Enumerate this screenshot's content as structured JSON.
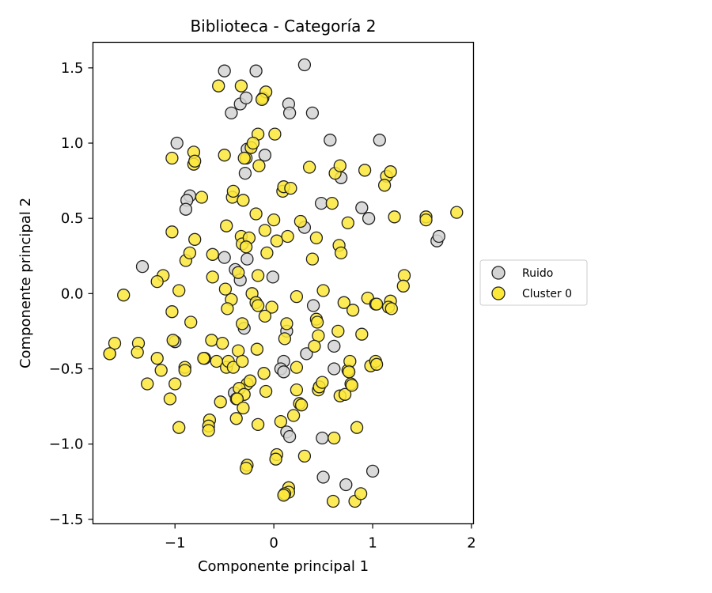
{
  "chart_data": {
    "type": "scatter",
    "title": "Biblioteca - Categoría 2",
    "xlabel": "Componente principal 1",
    "ylabel": "Componente principal 2",
    "xlim": [
      -1.83,
      2.02
    ],
    "ylim": [
      -1.53,
      1.67
    ],
    "xticks": [
      -1,
      0,
      1,
      2
    ],
    "xtick_labels": [
      "−1",
      "0",
      "1",
      "2"
    ],
    "yticks": [
      -1.5,
      -1.0,
      -0.5,
      0.0,
      0.5,
      1.0,
      1.5
    ],
    "ytick_labels": [
      "−1.5",
      "−1.0",
      "−0.5",
      "0.0",
      "0.5",
      "1.0",
      "1.5"
    ],
    "grid": false,
    "legend_placement": "outside-right",
    "series": [
      {
        "name": "Ruido",
        "color": "#d3d3d3",
        "edge_color": "#222222",
        "points": [
          [
            -0.5,
            1.48
          ],
          [
            -0.18,
            1.48
          ],
          [
            0.31,
            1.52
          ],
          [
            -0.34,
            1.26
          ],
          [
            -0.43,
            1.2
          ],
          [
            0.15,
            1.26
          ],
          [
            0.16,
            1.2
          ],
          [
            0.39,
            1.2
          ],
          [
            -0.28,
            1.3
          ],
          [
            0.57,
            1.02
          ],
          [
            1.07,
            1.02
          ],
          [
            -0.98,
            1.0
          ],
          [
            -0.27,
            0.96
          ],
          [
            -0.09,
            0.92
          ],
          [
            -0.29,
            0.8
          ],
          [
            0.68,
            0.77
          ],
          [
            -0.85,
            0.65
          ],
          [
            -0.88,
            0.62
          ],
          [
            -0.89,
            0.56
          ],
          [
            0.48,
            0.6
          ],
          [
            0.89,
            0.57
          ],
          [
            0.96,
            0.5
          ],
          [
            1.65,
            0.35
          ],
          [
            1.67,
            0.38
          ],
          [
            0.31,
            0.44
          ],
          [
            -1.33,
            0.18
          ],
          [
            -0.5,
            0.24
          ],
          [
            -0.27,
            0.23
          ],
          [
            -0.39,
            0.16
          ],
          [
            -0.34,
            0.09
          ],
          [
            -0.01,
            0.11
          ],
          [
            0.4,
            -0.08
          ],
          [
            -0.3,
            -0.23
          ],
          [
            0.13,
            -0.25
          ],
          [
            -1.0,
            -0.32
          ],
          [
            0.61,
            -0.35
          ],
          [
            0.33,
            -0.4
          ],
          [
            0.1,
            -0.45
          ],
          [
            0.07,
            -0.5
          ],
          [
            0.1,
            -0.52
          ],
          [
            0.61,
            -0.5
          ],
          [
            -0.4,
            -0.66
          ],
          [
            0.13,
            -0.92
          ],
          [
            0.16,
            -0.95
          ],
          [
            0.49,
            -0.96
          ],
          [
            0.5,
            -1.22
          ],
          [
            0.73,
            -1.27
          ],
          [
            1.0,
            -1.18
          ]
        ]
      },
      {
        "name": "Cluster 0",
        "color": "#fce839",
        "edge_color": "#222222",
        "points": [
          [
            -0.56,
            1.38
          ],
          [
            -0.33,
            1.38
          ],
          [
            -0.11,
            1.3
          ],
          [
            -0.08,
            1.34
          ],
          [
            -0.12,
            1.29
          ],
          [
            -0.16,
            1.06
          ],
          [
            0.01,
            1.06
          ],
          [
            -0.23,
            0.97
          ],
          [
            -0.21,
            1.0
          ],
          [
            -0.28,
            0.9
          ],
          [
            -0.3,
            0.9
          ],
          [
            -0.5,
            0.92
          ],
          [
            -1.03,
            0.9
          ],
          [
            -0.81,
            0.94
          ],
          [
            -0.81,
            0.86
          ],
          [
            -0.8,
            0.88
          ],
          [
            -0.15,
            0.85
          ],
          [
            0.36,
            0.84
          ],
          [
            0.62,
            0.8
          ],
          [
            0.67,
            0.85
          ],
          [
            0.92,
            0.82
          ],
          [
            1.14,
            0.78
          ],
          [
            1.18,
            0.81
          ],
          [
            1.12,
            0.72
          ],
          [
            0.09,
            0.68
          ],
          [
            0.1,
            0.71
          ],
          [
            0.17,
            0.7
          ],
          [
            -0.73,
            0.64
          ],
          [
            -0.42,
            0.64
          ],
          [
            -0.41,
            0.68
          ],
          [
            -0.31,
            0.62
          ],
          [
            0.59,
            0.6
          ],
          [
            -0.18,
            0.53
          ],
          [
            0.0,
            0.49
          ],
          [
            0.27,
            0.48
          ],
          [
            0.75,
            0.47
          ],
          [
            1.22,
            0.51
          ],
          [
            1.54,
            0.51
          ],
          [
            1.54,
            0.49
          ],
          [
            1.85,
            0.54
          ],
          [
            -1.03,
            0.41
          ],
          [
            -0.48,
            0.45
          ],
          [
            -0.33,
            0.38
          ],
          [
            -0.32,
            0.33
          ],
          [
            -0.25,
            0.37
          ],
          [
            -0.09,
            0.42
          ],
          [
            0.03,
            0.35
          ],
          [
            0.14,
            0.38
          ],
          [
            0.43,
            0.37
          ],
          [
            0.66,
            0.32
          ],
          [
            -0.8,
            0.36
          ],
          [
            -0.89,
            0.22
          ],
          [
            -0.85,
            0.27
          ],
          [
            -0.62,
            0.26
          ],
          [
            -0.28,
            0.31
          ],
          [
            -0.07,
            0.27
          ],
          [
            0.68,
            0.27
          ],
          [
            0.39,
            0.23
          ],
          [
            -1.12,
            0.12
          ],
          [
            -1.18,
            0.08
          ],
          [
            -0.62,
            0.11
          ],
          [
            -0.36,
            0.14
          ],
          [
            -0.16,
            0.12
          ],
          [
            1.32,
            0.12
          ],
          [
            -1.52,
            -0.01
          ],
          [
            -0.96,
            0.02
          ],
          [
            -0.49,
            0.03
          ],
          [
            -0.22,
            0.0
          ],
          [
            -0.18,
            -0.06
          ],
          [
            -0.16,
            -0.08
          ],
          [
            -0.02,
            -0.09
          ],
          [
            0.23,
            -0.02
          ],
          [
            0.5,
            0.02
          ],
          [
            0.71,
            -0.06
          ],
          [
            0.95,
            -0.03
          ],
          [
            1.03,
            -0.07
          ],
          [
            1.04,
            -0.07
          ],
          [
            1.18,
            -0.05
          ],
          [
            1.16,
            -0.09
          ],
          [
            1.19,
            -0.1
          ],
          [
            1.31,
            0.05
          ],
          [
            -0.43,
            -0.04
          ],
          [
            -0.47,
            -0.1
          ],
          [
            -1.03,
            -0.12
          ],
          [
            -0.84,
            -0.19
          ],
          [
            -0.32,
            -0.2
          ],
          [
            -0.09,
            -0.15
          ],
          [
            0.13,
            -0.2
          ],
          [
            0.11,
            -0.3
          ],
          [
            0.43,
            -0.17
          ],
          [
            0.44,
            -0.19
          ],
          [
            0.45,
            -0.28
          ],
          [
            0.65,
            -0.25
          ],
          [
            0.8,
            -0.11
          ],
          [
            0.89,
            -0.27
          ],
          [
            -1.37,
            -0.33
          ],
          [
            -1.38,
            -0.39
          ],
          [
            -1.61,
            -0.33
          ],
          [
            -1.66,
            -0.4
          ],
          [
            -1.66,
            -0.4
          ],
          [
            -1.02,
            -0.31
          ],
          [
            -0.63,
            -0.31
          ],
          [
            -0.52,
            -0.33
          ],
          [
            -0.36,
            -0.38
          ],
          [
            -0.17,
            -0.37
          ],
          [
            0.41,
            -0.35
          ],
          [
            -1.18,
            -0.43
          ],
          [
            -1.14,
            -0.51
          ],
          [
            -0.9,
            -0.49
          ],
          [
            -0.9,
            -0.51
          ],
          [
            -0.7,
            -0.43
          ],
          [
            -0.71,
            -0.43
          ],
          [
            -0.58,
            -0.45
          ],
          [
            -0.48,
            -0.49
          ],
          [
            -0.46,
            -0.45
          ],
          [
            -0.41,
            -0.49
          ],
          [
            -0.32,
            -0.45
          ],
          [
            -0.1,
            -0.53
          ],
          [
            0.23,
            -0.49
          ],
          [
            0.75,
            -0.51
          ],
          [
            0.77,
            -0.45
          ],
          [
            0.76,
            -0.52
          ],
          [
            0.98,
            -0.48
          ],
          [
            1.03,
            -0.45
          ],
          [
            1.04,
            -0.47
          ],
          [
            -1.28,
            -0.6
          ],
          [
            -1.0,
            -0.6
          ],
          [
            -0.27,
            -0.6
          ],
          [
            -0.24,
            -0.58
          ],
          [
            -0.35,
            -0.63
          ],
          [
            -0.3,
            -0.67
          ],
          [
            -0.38,
            -0.7
          ],
          [
            -0.37,
            -0.7
          ],
          [
            -0.54,
            -0.72
          ],
          [
            -0.31,
            -0.76
          ],
          [
            -0.08,
            -0.65
          ],
          [
            0.23,
            -0.64
          ],
          [
            0.45,
            -0.64
          ],
          [
            0.46,
            -0.62
          ],
          [
            0.49,
            -0.59
          ],
          [
            0.67,
            -0.68
          ],
          [
            0.72,
            -0.67
          ],
          [
            0.78,
            -0.6
          ],
          [
            0.79,
            -0.61
          ],
          [
            -1.05,
            -0.7
          ],
          [
            -0.38,
            -0.83
          ],
          [
            -0.16,
            -0.87
          ],
          [
            0.07,
            -0.85
          ],
          [
            0.2,
            -0.81
          ],
          [
            0.26,
            -0.73
          ],
          [
            0.28,
            -0.74
          ],
          [
            -0.96,
            -0.89
          ],
          [
            -0.65,
            -0.84
          ],
          [
            -0.66,
            -0.88
          ],
          [
            -0.66,
            -0.91
          ],
          [
            0.61,
            -0.96
          ],
          [
            0.84,
            -0.89
          ],
          [
            0.03,
            -1.07
          ],
          [
            0.02,
            -1.1
          ],
          [
            0.31,
            -1.08
          ],
          [
            -0.27,
            -1.14
          ],
          [
            -0.28,
            -1.16
          ],
          [
            0.15,
            -1.29
          ],
          [
            0.15,
            -1.32
          ],
          [
            0.11,
            -1.33
          ],
          [
            0.1,
            -1.34
          ],
          [
            0.6,
            -1.38
          ],
          [
            0.82,
            -1.38
          ],
          [
            0.88,
            -1.33
          ]
        ]
      }
    ]
  }
}
